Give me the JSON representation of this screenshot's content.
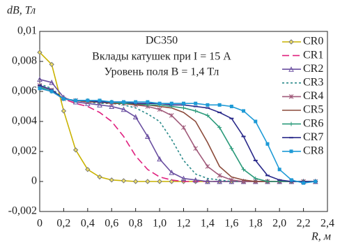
{
  "chart_data": {
    "type": "line",
    "title": "DC350",
    "subtitle": "Вклады катушек при I = 15 А",
    "annotation": "Уровень поля B = 1,4 Тл",
    "y_label": "dB, Тл",
    "x_label": "R, м",
    "x": [
      0,
      0.1,
      0.2,
      0.3,
      0.4,
      0.5,
      0.6,
      0.7,
      0.8,
      0.9,
      1.0,
      1.1,
      1.2,
      1.3,
      1.4,
      1.5,
      1.6,
      1.7,
      1.8,
      1.9,
      2.0,
      2.1,
      2.2,
      2.3
    ],
    "xlim": [
      0,
      2.4
    ],
    "ylim": [
      -0.002,
      0.01
    ],
    "xticks": [
      0,
      {
        "value": 0.2,
        "label": "0,2"
      },
      {
        "value": 0.4,
        "label": "0,4"
      },
      {
        "value": 0.6,
        "label": "0,6"
      },
      {
        "value": 0.8,
        "label": "0,8"
      },
      {
        "value": 1.0,
        "label": "1,0"
      },
      {
        "value": 1.2,
        "label": "1,2"
      },
      {
        "value": 1.4,
        "label": "1,4"
      },
      {
        "value": 1.6,
        "label": "1,6"
      },
      {
        "value": 1.8,
        "label": "1,8"
      },
      {
        "value": 2.0,
        "label": "2,0"
      },
      {
        "value": 2.2,
        "label": "2,2"
      },
      {
        "value": 2.4,
        "label": "2,4"
      }
    ],
    "yticks": [
      {
        "value": -0.002,
        "label": "-0,002"
      },
      0,
      {
        "value": 0.002,
        "label": "0,002"
      },
      {
        "value": 0.004,
        "label": "0,004"
      },
      {
        "value": 0.006,
        "label": "0,006"
      },
      {
        "value": 0.008,
        "label": "0,008"
      },
      {
        "value": 0.01,
        "label": "0,01"
      }
    ],
    "series": [
      {
        "name": "CR0",
        "color": "#c9b200",
        "marker": "diamond",
        "dash": "",
        "values": [
          0.0086,
          0.0078,
          0.0047,
          0.0021,
          0.0008,
          0.0003,
          0.0001,
          5e-05,
          0,
          0,
          0,
          0,
          0,
          0,
          0,
          0,
          0,
          0,
          0,
          0,
          0,
          0,
          0,
          0
        ]
      },
      {
        "name": "CR1",
        "color": "#e0207f",
        "marker": "none",
        "dash": "10 5",
        "values": [
          0.0063,
          0.006,
          0.0055,
          0.0052,
          0.005,
          0.0046,
          0.004,
          0.003,
          0.0017,
          0.0008,
          0.0003,
          0.0001,
          0,
          0,
          0,
          0,
          0,
          0,
          0,
          0,
          0,
          0,
          0,
          0
        ]
      },
      {
        "name": "CR2",
        "color": "#6a4fa0",
        "marker": "triangle",
        "dash": "",
        "values": [
          0.0068,
          0.0066,
          0.0056,
          0.0053,
          0.0052,
          0.0051,
          0.005,
          0.0048,
          0.0043,
          0.003,
          0.0015,
          0.0006,
          0.0002,
          0.0001,
          0,
          0,
          0,
          0,
          0,
          0,
          0,
          0,
          0,
          0
        ]
      },
      {
        "name": "CR3",
        "color": "#2a8a8a",
        "marker": "none",
        "dash": "3 3",
        "values": [
          0.0065,
          0.0062,
          0.0055,
          0.0054,
          0.0053,
          0.0052,
          0.0052,
          0.0051,
          0.0049,
          0.0045,
          0.004,
          0.0028,
          0.0014,
          0.0005,
          0.0002,
          0.0001,
          0,
          0,
          0,
          0,
          0,
          0,
          0,
          0
        ]
      },
      {
        "name": "CR4",
        "color": "#a05a7a",
        "marker": "star",
        "dash": "",
        "values": [
          0.0064,
          0.0061,
          0.0055,
          0.0054,
          0.0053,
          0.0053,
          0.0052,
          0.0052,
          0.0051,
          0.005,
          0.0048,
          0.0044,
          0.0036,
          0.0022,
          0.001,
          0.0004,
          0.0001,
          0,
          0,
          0,
          0,
          0,
          0,
          0
        ]
      },
      {
        "name": "CR5",
        "color": "#8b4a3a",
        "marker": "none",
        "dash": "",
        "values": [
          0.0062,
          0.006,
          0.0055,
          0.0054,
          0.0053,
          0.0053,
          0.0052,
          0.0052,
          0.0051,
          0.0051,
          0.005,
          0.0049,
          0.0046,
          0.004,
          0.0026,
          0.001,
          0.0003,
          0.0001,
          0,
          0,
          0,
          0,
          0,
          0
        ]
      },
      {
        "name": "CR6",
        "color": "#2a9a7a",
        "marker": "plus",
        "dash": "",
        "values": [
          0.0063,
          0.006,
          0.0055,
          0.0054,
          0.0054,
          0.0053,
          0.0053,
          0.0052,
          0.0052,
          0.0051,
          0.0051,
          0.005,
          0.0049,
          0.0047,
          0.0044,
          0.0036,
          0.0022,
          0.0008,
          0.0002,
          0,
          0,
          0,
          0,
          0
        ]
      },
      {
        "name": "CR7",
        "color": "#2a2a8a",
        "marker": "dash",
        "dash": "",
        "values": [
          0.0064,
          0.0061,
          0.0055,
          0.0054,
          0.0054,
          0.0053,
          0.0053,
          0.0053,
          0.0052,
          0.0052,
          0.0052,
          0.0051,
          0.0051,
          0.005,
          0.0049,
          0.0046,
          0.0042,
          0.003,
          0.0014,
          0.0004,
          0.0001,
          0,
          0,
          0
        ]
      },
      {
        "name": "CR8",
        "color": "#1e9ad6",
        "marker": "square",
        "dash": "",
        "values": [
          0.0062,
          0.006,
          0.0055,
          0.0054,
          0.0054,
          0.0054,
          0.0053,
          0.0053,
          0.0053,
          0.0053,
          0.0052,
          0.0052,
          0.0052,
          0.0052,
          0.0051,
          0.0051,
          0.005,
          0.0047,
          0.004,
          0.0025,
          0.0008,
          0.0001,
          -0.0001,
          0
        ]
      }
    ]
  }
}
